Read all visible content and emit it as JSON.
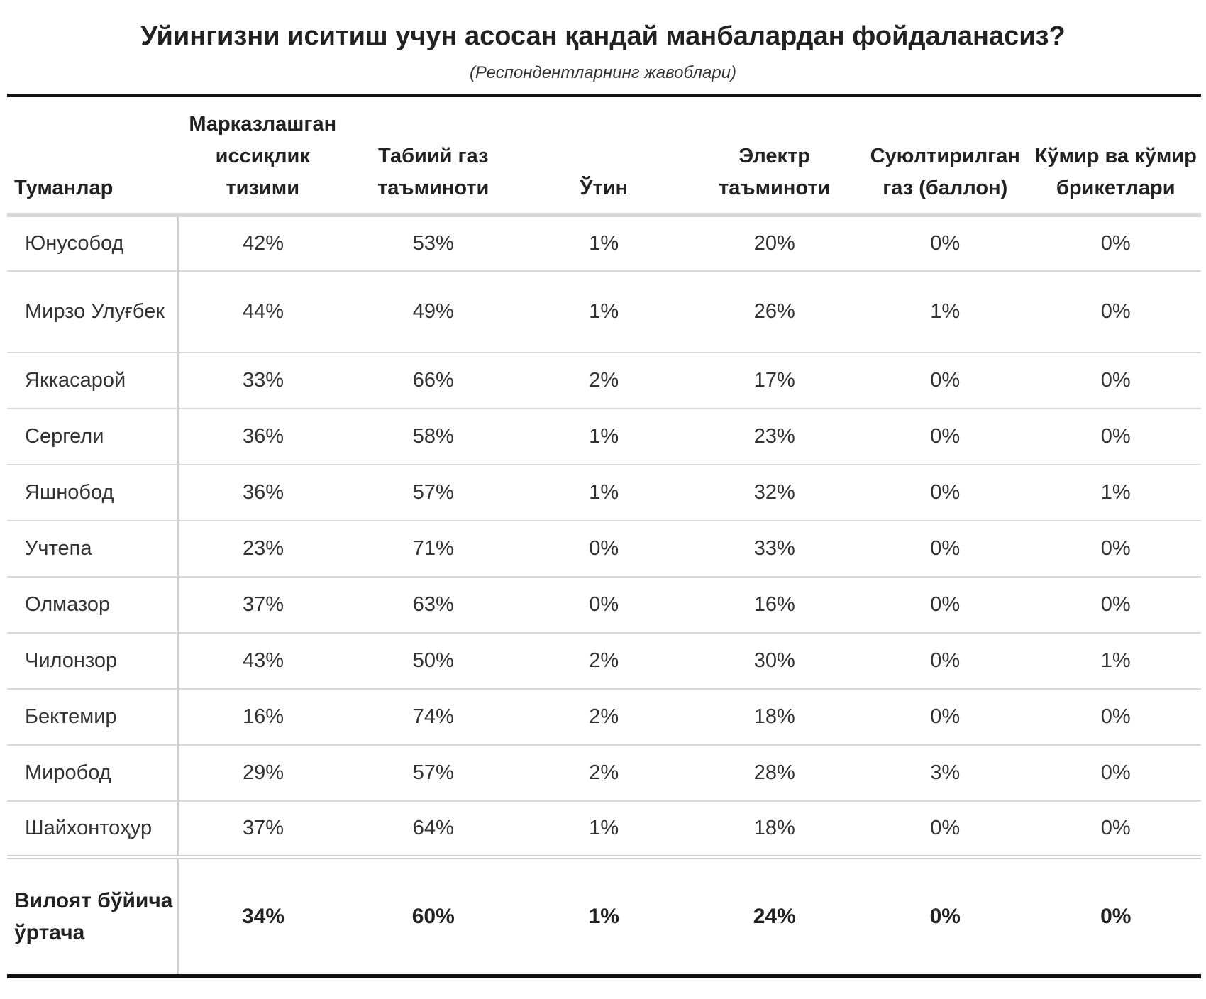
{
  "title": "Уйингизни иситиш учун асосан қандай манбалардан фойдаланасиз?",
  "subtitle": "(Респондентларнинг жавоблари)",
  "table": {
    "headers": [
      "Туманлар",
      "Марказлашган иссиқлик тизими",
      "Табиий газ таъминоти",
      "Ўтин",
      "Электр таъминоти",
      "Суюлтирилган газ (баллон)",
      "Кўмир ва кўмир брикетлари"
    ],
    "rows": [
      [
        "Юнусобод",
        "42%",
        "53%",
        "1%",
        "20%",
        "0%",
        "0%"
      ],
      [
        "Мирзо Улуғбек",
        "44%",
        "49%",
        "1%",
        "26%",
        "1%",
        "0%"
      ],
      [
        "Яккасарой",
        "33%",
        "66%",
        "2%",
        "17%",
        "0%",
        "0%"
      ],
      [
        "Сергели",
        "36%",
        "58%",
        "1%",
        "23%",
        "0%",
        "0%"
      ],
      [
        "Яшнобод",
        "36%",
        "57%",
        "1%",
        "32%",
        "0%",
        "1%"
      ],
      [
        "Учтепа",
        "23%",
        "71%",
        "0%",
        "33%",
        "0%",
        "0%"
      ],
      [
        "Олмазор",
        "37%",
        "63%",
        "0%",
        "16%",
        "0%",
        "0%"
      ],
      [
        "Чилонзор",
        "43%",
        "50%",
        "2%",
        "30%",
        "0%",
        "1%"
      ],
      [
        "Бектемир",
        "16%",
        "74%",
        "2%",
        "18%",
        "0%",
        "0%"
      ],
      [
        "Миробод",
        "29%",
        "57%",
        "2%",
        "28%",
        "3%",
        "0%"
      ],
      [
        "Шайхонтоҳур",
        "37%",
        "64%",
        "1%",
        "18%",
        "0%",
        "0%"
      ]
    ],
    "total": [
      "Вилоят бўйича ўртача",
      "34%",
      "60%",
      "1%",
      "24%",
      "0%",
      "0%"
    ]
  }
}
